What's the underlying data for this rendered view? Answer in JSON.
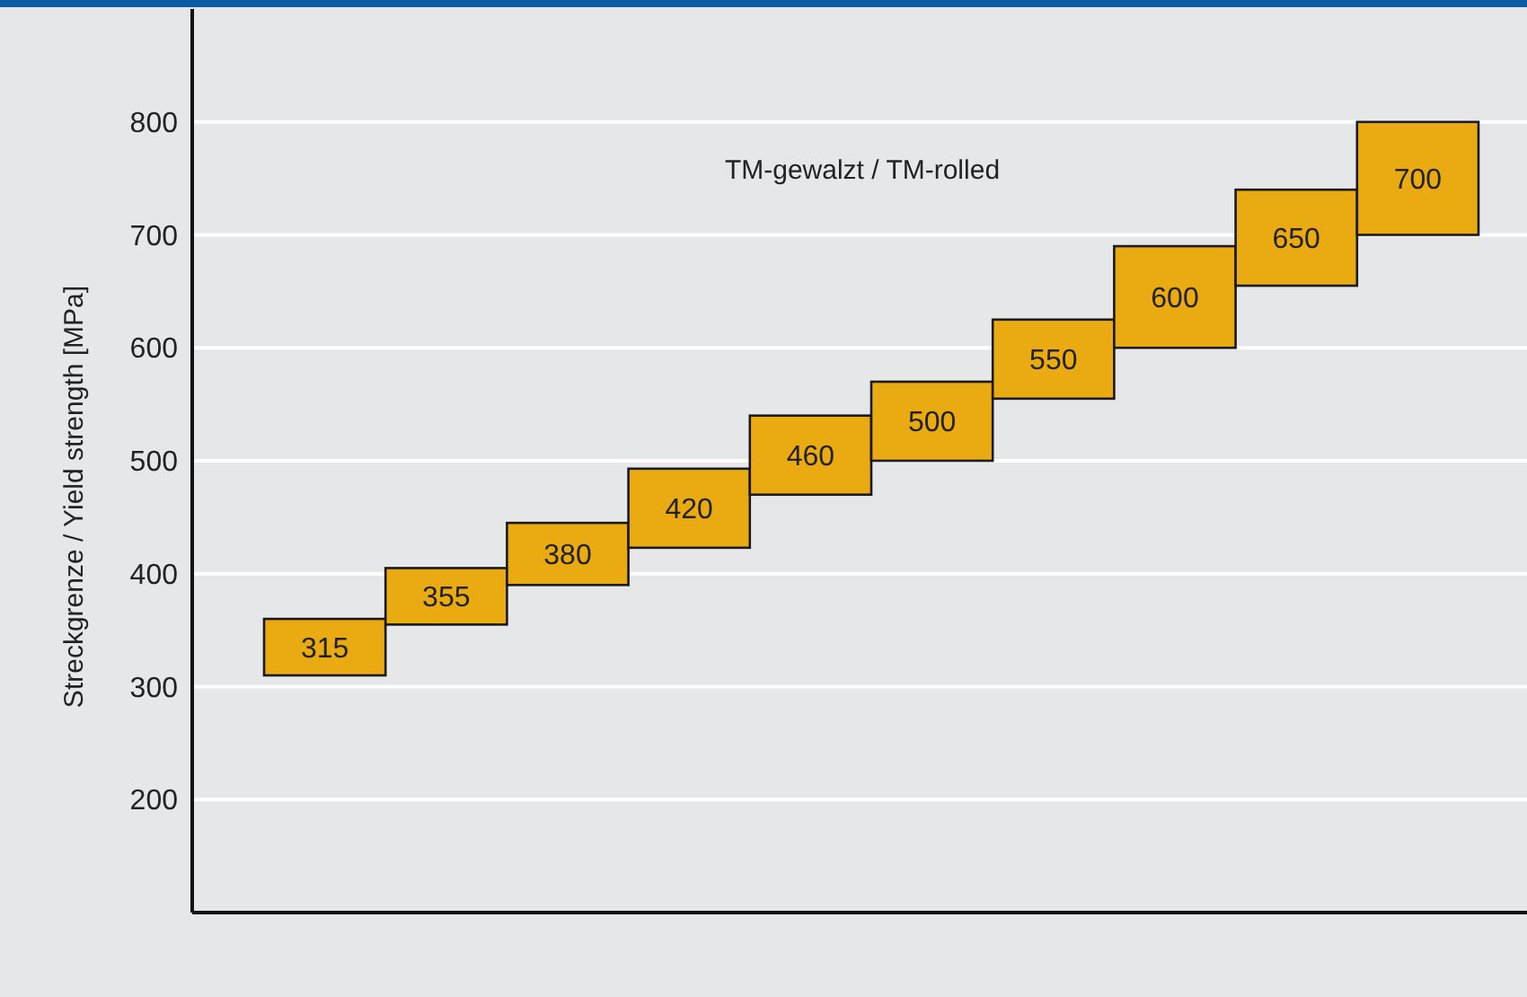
{
  "chart_data": {
    "type": "bar",
    "ylabel": "Streckgrenze / Yield strength [MPa]",
    "annotations": [
      "TM-gewalzt / TM-rolled"
    ],
    "categories": [
      "315",
      "355",
      "380",
      "420",
      "460",
      "500",
      "550",
      "600",
      "650",
      "700"
    ],
    "base": [
      310,
      355,
      390,
      423,
      470,
      500,
      555,
      600,
      655,
      700
    ],
    "values": [
      50,
      50,
      55,
      70,
      70,
      70,
      70,
      90,
      85,
      100
    ],
    "color": "#e9aa12",
    "ylim": [
      100,
      900
    ],
    "yticks": [
      200,
      300,
      400,
      500,
      600,
      700,
      800
    ],
    "grid": "y"
  }
}
